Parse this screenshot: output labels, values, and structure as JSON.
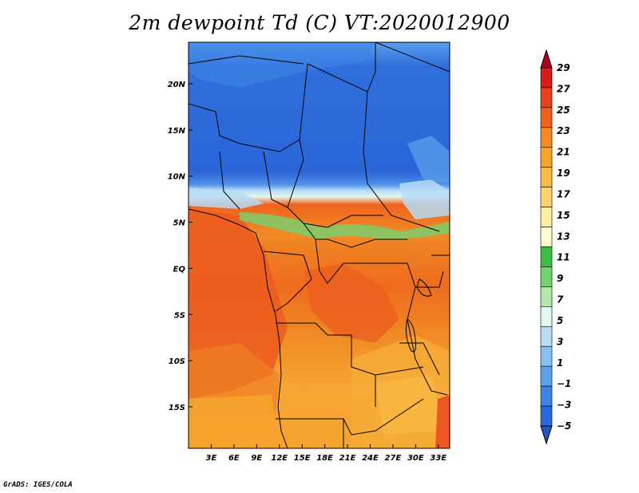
{
  "title": "2m dewpoint Td (C) VT:2020012900",
  "footer": "GrADS: IGES/COLA",
  "map": {
    "lon_range": [
      0,
      34.5
    ],
    "lat_range": [
      -19.5,
      24.5
    ],
    "lon_ticks": [
      {
        "value": 3,
        "label": "3E"
      },
      {
        "value": 6,
        "label": "6E"
      },
      {
        "value": 9,
        "label": "9E"
      },
      {
        "value": 12,
        "label": "12E"
      },
      {
        "value": 15,
        "label": "15E"
      },
      {
        "value": 18,
        "label": "18E"
      },
      {
        "value": 21,
        "label": "21E"
      },
      {
        "value": 24,
        "label": "24E"
      },
      {
        "value": 27,
        "label": "27E"
      },
      {
        "value": 30,
        "label": "30E"
      },
      {
        "value": 33,
        "label": "33E"
      }
    ],
    "lat_ticks": [
      {
        "value": 20,
        "label": "20N"
      },
      {
        "value": 15,
        "label": "15N"
      },
      {
        "value": 10,
        "label": "10N"
      },
      {
        "value": 5,
        "label": "5N"
      },
      {
        "value": 0,
        "label": "EQ"
      },
      {
        "value": -5,
        "label": "5S"
      },
      {
        "value": -10,
        "label": "10S"
      },
      {
        "value": -15,
        "label": "15S"
      }
    ]
  },
  "colorbar": {
    "labels": [
      "29",
      "27",
      "25",
      "23",
      "21",
      "19",
      "17",
      "15",
      "13",
      "11",
      "9",
      "7",
      "5",
      "3",
      "1",
      "−1",
      "−3",
      "−5"
    ],
    "colors": [
      "#b3001d",
      "#d71a1a",
      "#e8411c",
      "#f0631f",
      "#f38a22",
      "#f7a42d",
      "#f8bc44",
      "#fad46a",
      "#fdef9f",
      "#fcfbd0",
      "#3ebd46",
      "#75d271",
      "#b2e9a8",
      "#e2f7ee",
      "#b6dcf6",
      "#88c0f2",
      "#5da3ec",
      "#3c84e5",
      "#2b68da",
      "#2253c7"
    ]
  }
}
